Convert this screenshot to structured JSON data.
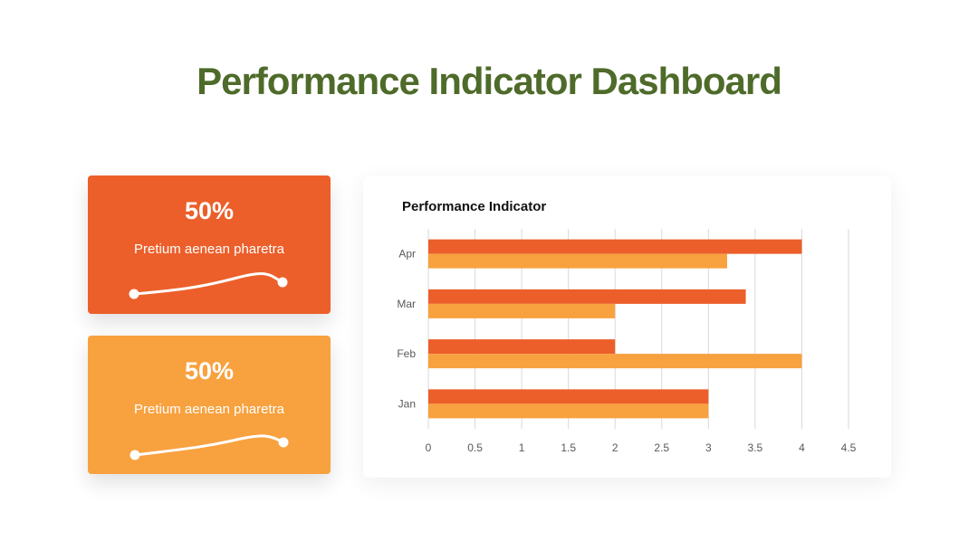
{
  "page": {
    "title": "Performance Indicator Dashboard"
  },
  "colors": {
    "title": "#4e6b2a",
    "orange_dark": "#ec5f2a",
    "orange_light": "#f8a13f"
  },
  "cards": [
    {
      "value": "50%",
      "label": "Pretium aenean pharetra",
      "color": "#ec5f2a"
    },
    {
      "value": "50%",
      "label": "Pretium aenean pharetra",
      "color": "#f8a13f"
    }
  ],
  "chart_data": {
    "type": "bar",
    "orientation": "horizontal",
    "title": "Performance Indicator",
    "categories": [
      "Jan",
      "Feb",
      "Mar",
      "Apr"
    ],
    "series": [
      {
        "values": [
          3,
          2,
          3.4,
          4
        ],
        "color": "#ec5f2a"
      },
      {
        "values": [
          3,
          4,
          2,
          3.2
        ],
        "color": "#f8a13f"
      }
    ],
    "xlim": [
      0,
      4.5
    ],
    "xticks": [
      "0",
      "0.5",
      "1",
      "1.5",
      "2",
      "2.5",
      "3",
      "3.5",
      "4",
      "4.5"
    ],
    "grid": true,
    "legend": "none"
  }
}
